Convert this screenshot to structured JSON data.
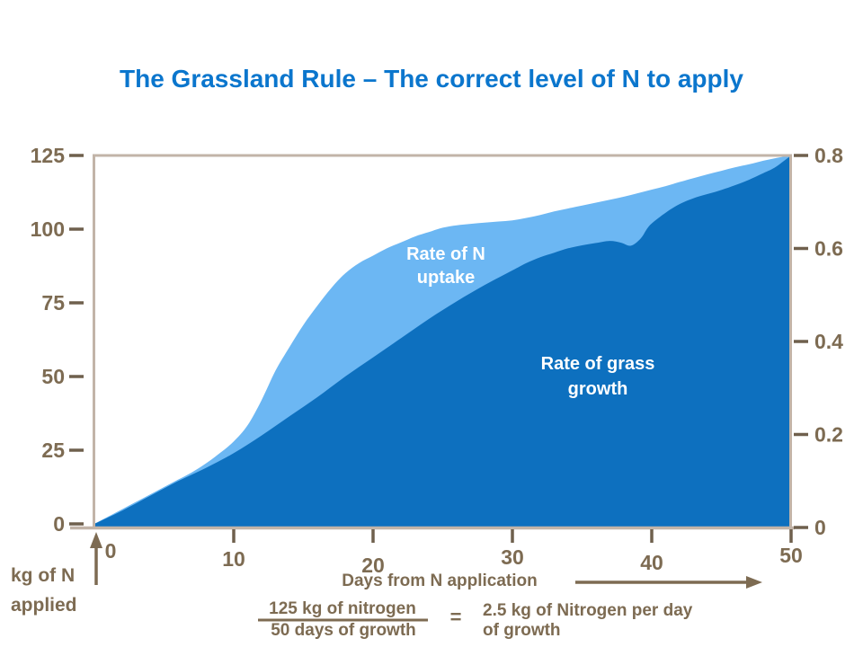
{
  "title": "The Grassland Rule – The correct level of N to apply",
  "colors": {
    "title_blue": "#0b76cd",
    "uptake_fill": "#6cb7f3",
    "growth_fill": "#0d70bf",
    "axis_line_tan": "#c2b4a8",
    "tick_brown": "#6f604d",
    "text_brown": "#7d6b52",
    "series_label_white": "#ffffff"
  },
  "chart_data": {
    "type": "area",
    "title": "The Grassland Rule – The correct level of N to apply",
    "x_axis": {
      "label": "Days from N application",
      "ticks": [
        0,
        10,
        20,
        30,
        40,
        50
      ],
      "range": [
        0,
        50
      ],
      "grid": false
    },
    "y_axis_left": {
      "label": "kg of N applied",
      "ticks": [
        0,
        25,
        50,
        75,
        100,
        125
      ],
      "range": [
        0,
        125
      ]
    },
    "y_axis_right": {
      "label": "",
      "ticks": [
        0,
        0.2,
        0.4,
        0.6,
        0.8
      ],
      "range": [
        0,
        0.8
      ]
    },
    "legend_position": "inside-area-labels",
    "series": [
      {
        "name": "Rate of N uptake",
        "label_lines": [
          "Rate of N",
          "uptake"
        ],
        "color": "#6cb7f3",
        "points": [
          [
            0,
            0
          ],
          [
            1,
            2.5
          ],
          [
            2,
            5
          ],
          [
            3,
            7.5
          ],
          [
            4,
            10
          ],
          [
            5,
            12.5
          ],
          [
            6,
            15
          ],
          [
            7,
            17.5
          ],
          [
            8,
            20.5
          ],
          [
            9,
            24
          ],
          [
            10,
            28
          ],
          [
            11,
            33.5
          ],
          [
            12,
            42
          ],
          [
            13,
            52
          ],
          [
            14,
            60
          ],
          [
            15,
            67.5
          ],
          [
            16,
            74
          ],
          [
            17,
            80
          ],
          [
            18,
            85
          ],
          [
            19,
            88.5
          ],
          [
            20,
            91
          ],
          [
            21,
            93.5
          ],
          [
            22,
            95.5
          ],
          [
            23,
            97.5
          ],
          [
            24,
            99
          ],
          [
            25,
            100.5
          ],
          [
            26,
            101.3
          ],
          [
            27,
            101.8
          ],
          [
            28,
            102.2
          ],
          [
            29,
            102.6
          ],
          [
            30,
            103
          ],
          [
            31,
            103.8
          ],
          [
            32,
            104.8
          ],
          [
            33,
            106
          ],
          [
            34,
            107
          ],
          [
            35,
            108
          ],
          [
            36,
            109
          ],
          [
            37,
            110
          ],
          [
            38,
            111
          ],
          [
            39,
            112.2
          ],
          [
            40,
            113.4
          ],
          [
            41,
            114.6
          ],
          [
            42,
            116
          ],
          [
            43,
            117.3
          ],
          [
            44,
            118.6
          ],
          [
            45,
            119.8
          ],
          [
            46,
            121
          ],
          [
            47,
            122
          ],
          [
            48,
            123.2
          ],
          [
            49,
            124.2
          ],
          [
            50,
            125
          ]
        ]
      },
      {
        "name": "Rate of grass growth",
        "label_lines": [
          "Rate of grass",
          "growth"
        ],
        "color": "#0d70bf",
        "points": [
          [
            0,
            0
          ],
          [
            2,
            4.5
          ],
          [
            4,
            9.5
          ],
          [
            6,
            14.5
          ],
          [
            8,
            19
          ],
          [
            10,
            24
          ],
          [
            12,
            30
          ],
          [
            14,
            36.5
          ],
          [
            16,
            43
          ],
          [
            18,
            50
          ],
          [
            20,
            56.5
          ],
          [
            22,
            63
          ],
          [
            24,
            69.5
          ],
          [
            26,
            75.5
          ],
          [
            28,
            81
          ],
          [
            30,
            86
          ],
          [
            31,
            88.5
          ],
          [
            32,
            90.5
          ],
          [
            33,
            92
          ],
          [
            34,
            93.5
          ],
          [
            35,
            94.5
          ],
          [
            36,
            95.3
          ],
          [
            37,
            96
          ],
          [
            37.8,
            95.4
          ],
          [
            38.5,
            94.4
          ],
          [
            39.2,
            96.8
          ],
          [
            39.8,
            101
          ],
          [
            40.6,
            104.2
          ],
          [
            41.8,
            108
          ],
          [
            43,
            110.5
          ],
          [
            44.8,
            113
          ],
          [
            46.6,
            116
          ],
          [
            48,
            119
          ],
          [
            48.8,
            120.8
          ],
          [
            49.5,
            123.2
          ],
          [
            50,
            125
          ]
        ]
      }
    ]
  },
  "annotations": {
    "y_axis_title_lines": [
      "kg of N",
      "applied"
    ],
    "x_axis_title": "Days from N application",
    "formula_numerator": "125 kg of nitrogen",
    "formula_denominator": "50 days of growth",
    "equals_sign": "=",
    "formula_result_lines": [
      "2.5 kg of Nitrogen per day",
      "of growth"
    ]
  }
}
